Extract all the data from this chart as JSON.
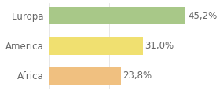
{
  "categories": [
    "Africa",
    "America",
    "Europa"
  ],
  "values": [
    23.8,
    31.0,
    45.2
  ],
  "labels": [
    "23,8%",
    "31,0%",
    "45,2%"
  ],
  "bar_colors": [
    "#f0c080",
    "#f0e070",
    "#a8c888"
  ],
  "background_color": "#ffffff",
  "xlim": [
    0,
    55
  ],
  "label_fontsize": 8.5,
  "tick_fontsize": 8.5,
  "text_color": "#666666"
}
